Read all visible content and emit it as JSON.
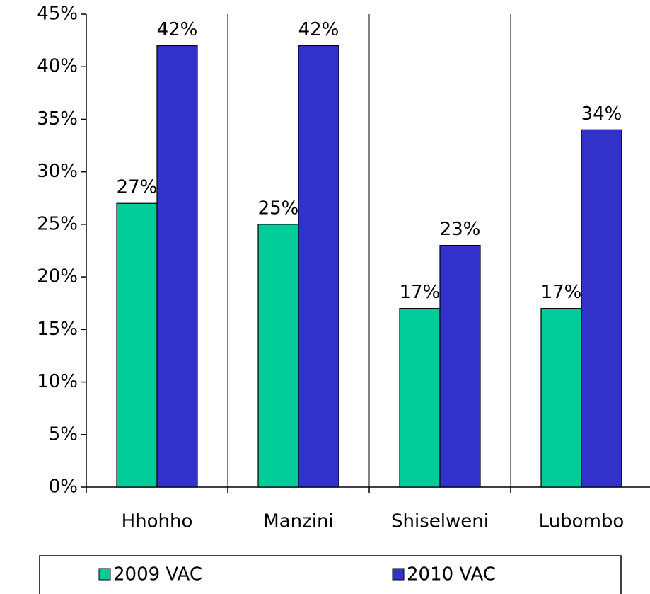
{
  "chart_data": {
    "type": "bar",
    "categories": [
      "Hhohho",
      "Manzini",
      "Shiselweni",
      "Lubombo"
    ],
    "series": [
      {
        "name": "2009 VAC",
        "color": "#00cc99",
        "values": [
          27,
          25,
          17,
          17
        ],
        "value_labels": [
          "27%",
          "25%",
          "17%",
          "17%"
        ]
      },
      {
        "name": "2010 VAC",
        "color": "#3333cc",
        "values": [
          42,
          42,
          23,
          34
        ],
        "value_labels": [
          "42%",
          "42%",
          "23%",
          "34%"
        ]
      }
    ],
    "ylim": [
      0,
      45
    ],
    "yticks": [
      {
        "value": 0,
        "label": "0%"
      },
      {
        "value": 5,
        "label": "5%"
      },
      {
        "value": 10,
        "label": "10%"
      },
      {
        "value": 15,
        "label": "15%"
      },
      {
        "value": 20,
        "label": "20%"
      },
      {
        "value": 25,
        "label": "25%"
      },
      {
        "value": 30,
        "label": "30%"
      },
      {
        "value": 35,
        "label": "35%"
      },
      {
        "value": 40,
        "label": "40%"
      },
      {
        "value": 45,
        "label": "45%"
      }
    ],
    "legend": "bottom"
  }
}
